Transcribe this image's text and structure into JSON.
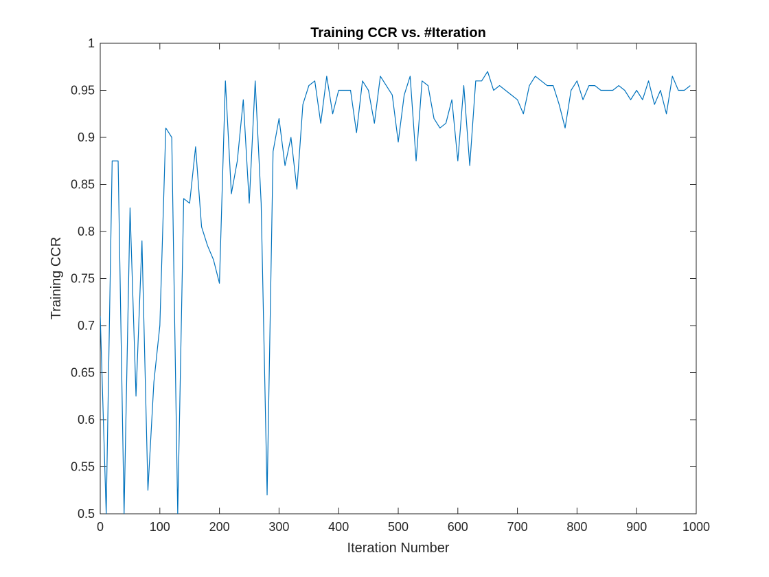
{
  "chart_data": {
    "type": "line",
    "title": "Training CCR vs. #Iteration",
    "xlabel": "Iteration Number",
    "ylabel": "Training CCR",
    "xlim": [
      0,
      1000
    ],
    "ylim": [
      0.5,
      1
    ],
    "xticks": [
      0,
      100,
      200,
      300,
      400,
      500,
      600,
      700,
      800,
      900,
      1000
    ],
    "yticks": [
      0.5,
      0.55,
      0.6,
      0.65,
      0.7,
      0.75,
      0.8,
      0.85,
      0.9,
      0.95,
      1
    ],
    "xtick_labels": [
      "0",
      "100",
      "200",
      "300",
      "400",
      "500",
      "600",
      "700",
      "800",
      "900",
      "1000"
    ],
    "ytick_labels": [
      "0.5",
      "0.55",
      "0.6",
      "0.65",
      "0.7",
      "0.75",
      "0.8",
      "0.85",
      "0.9",
      "0.95",
      "1"
    ],
    "grid": false,
    "line_color": "#0072BD",
    "axis_color": "#262626",
    "series": [
      {
        "x": [
          0,
          10,
          20,
          30,
          40,
          50,
          60,
          70,
          80,
          90,
          100,
          110,
          120,
          130,
          140,
          150,
          160,
          170,
          180,
          190,
          200,
          210,
          220,
          230,
          240,
          250,
          260,
          270,
          280,
          290,
          300,
          310,
          320,
          330,
          340,
          350,
          360,
          370,
          380,
          390,
          400,
          410,
          420,
          430,
          440,
          450,
          460,
          470,
          480,
          490,
          500,
          510,
          520,
          530,
          540,
          550,
          560,
          570,
          580,
          590,
          600,
          610,
          620,
          630,
          640,
          650,
          660,
          670,
          680,
          690,
          700,
          710,
          720,
          730,
          740,
          750,
          760,
          770,
          780,
          790,
          800,
          810,
          820,
          830,
          840,
          850,
          860,
          870,
          880,
          890,
          900,
          910,
          920,
          930,
          940,
          950,
          960,
          970,
          980,
          990
        ],
        "y": [
          0.71,
          0.5,
          0.875,
          0.875,
          0.5,
          0.825,
          0.625,
          0.79,
          0.525,
          0.64,
          0.7,
          0.91,
          0.9,
          0.5,
          0.835,
          0.83,
          0.89,
          0.805,
          0.785,
          0.77,
          0.745,
          0.96,
          0.84,
          0.875,
          0.94,
          0.83,
          0.96,
          0.83,
          0.52,
          0.885,
          0.92,
          0.87,
          0.9,
          0.845,
          0.935,
          0.955,
          0.96,
          0.915,
          0.965,
          0.925,
          0.95,
          0.95,
          0.95,
          0.905,
          0.96,
          0.95,
          0.915,
          0.965,
          0.955,
          0.945,
          0.895,
          0.945,
          0.965,
          0.875,
          0.96,
          0.955,
          0.92,
          0.91,
          0.915,
          0.94,
          0.875,
          0.955,
          0.87,
          0.96,
          0.96,
          0.97,
          0.95,
          0.955,
          0.95,
          0.945,
          0.94,
          0.925,
          0.955,
          0.965,
          0.96,
          0.955,
          0.955,
          0.935,
          0.91,
          0.95,
          0.96,
          0.94,
          0.955,
          0.955,
          0.95,
          0.95,
          0.95,
          0.955,
          0.95,
          0.94,
          0.95,
          0.94,
          0.96,
          0.935,
          0.95,
          0.925,
          0.965,
          0.95,
          0.95,
          0.955
        ]
      }
    ]
  }
}
